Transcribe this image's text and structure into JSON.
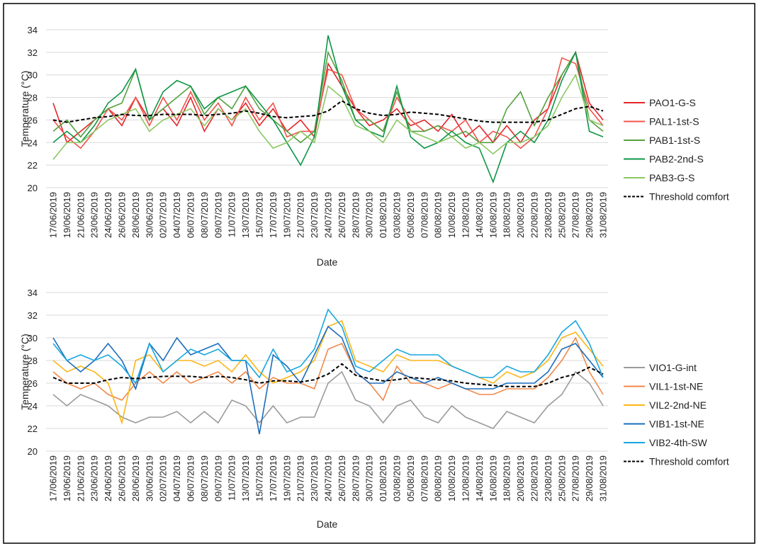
{
  "chart_data": [
    {
      "type": "line",
      "x_label": "Date",
      "y_label": "Temperature (°C)",
      "categories": [
        "17/06/2019",
        "19/06/2019",
        "21/06/2019",
        "23/06/2019",
        "24/06/2019",
        "26/06/2019",
        "28/06/2019",
        "30/06/2019",
        "02/07/2019",
        "04/07/2019",
        "06/07/2019",
        "08/07/2019",
        "09/07/2019",
        "11/07/2019",
        "13/07/2019",
        "15/07/2019",
        "17/07/2019",
        "19/07/2019",
        "21/07/2019",
        "23/07/2019",
        "24/07/2019",
        "26/07/2019",
        "28/07/2019",
        "30/07/2019",
        "01/08/2019",
        "03/08/2019",
        "05/08/2019",
        "07/08/2019",
        "08/08/2019",
        "10/08/2019",
        "12/08/2019",
        "14/08/2019",
        "16/08/2019",
        "18/08/2019",
        "20/08/2019",
        "22/08/2019",
        "23/08/2019",
        "25/08/2019",
        "27/08/2019",
        "29/08/2019",
        "31/08/2019"
      ],
      "ylim": [
        20,
        34
      ],
      "yticks": [
        20,
        22,
        24,
        26,
        28,
        30,
        32,
        34
      ],
      "grid": true,
      "series": [
        {
          "name": "PAO1-G-S",
          "color": "#e3262b",
          "values": [
            27.5,
            24,
            25,
            26,
            27,
            25.5,
            28,
            26,
            27,
            25.5,
            28,
            25,
            27,
            26,
            27.5,
            25.5,
            27,
            25,
            26,
            24.5,
            31,
            29,
            27,
            25.5,
            26,
            27,
            25.5,
            26,
            25,
            26.5,
            24.5,
            25.5,
            24,
            25.5,
            24,
            26,
            27,
            30,
            32,
            27.5,
            26
          ]
        },
        {
          "name": "PAL1-1st-S",
          "color": "#f2534d",
          "values": [
            26,
            24.5,
            23.5,
            25,
            27,
            26,
            28,
            25.5,
            28,
            26,
            28.5,
            26,
            27.5,
            25.5,
            28,
            26,
            27.5,
            24.5,
            25,
            25,
            30.5,
            30,
            27,
            26,
            25,
            28,
            26,
            25,
            25.5,
            25,
            26,
            24,
            25,
            24.5,
            23.5,
            24.5,
            27,
            31.5,
            31,
            27,
            25.5
          ]
        },
        {
          "name": "PAB1-1st-S",
          "color": "#55a13f",
          "values": [
            25,
            26,
            24.5,
            26,
            27,
            27.5,
            30.5,
            26,
            27,
            28,
            29,
            26.5,
            28,
            27,
            29,
            27,
            26,
            25,
            24,
            25,
            32,
            29.5,
            26,
            26,
            25,
            28.5,
            25,
            25,
            25.5,
            24.5,
            25,
            24,
            24,
            27,
            28.5,
            25.5,
            28,
            30,
            32,
            26,
            25
          ]
        },
        {
          "name": "PAB2-2nd-S",
          "color": "#0f9647",
          "values": [
            24,
            25,
            24,
            25.5,
            27.5,
            28.5,
            30.5,
            26,
            28.5,
            29.5,
            29,
            27,
            28,
            28.5,
            29,
            27.5,
            26,
            24,
            22,
            24.5,
            33.5,
            29,
            26,
            25,
            24.5,
            29,
            24.5,
            23.5,
            24,
            25,
            24,
            23.5,
            20.5,
            24,
            25,
            24,
            26,
            29.5,
            32,
            25,
            24.5
          ]
        },
        {
          "name": "PAB3-G-S",
          "color": "#8cc863",
          "values": [
            22.5,
            24,
            24,
            25,
            26,
            26.5,
            27,
            25,
            26,
            26.5,
            27,
            25.5,
            27,
            26,
            27,
            25,
            23.5,
            24,
            25,
            24,
            29,
            28,
            25.5,
            25,
            24,
            26,
            25,
            24.5,
            24,
            24.5,
            23.5,
            24,
            23,
            24,
            24,
            24.5,
            25.5,
            28,
            30,
            26,
            25.5
          ]
        },
        {
          "name": "Threshold comfort",
          "color": "#000000",
          "dashed": true,
          "values": [
            26.0,
            25.8,
            26.0,
            26.2,
            26.3,
            26.5,
            26.4,
            26.4,
            26.5,
            26.5,
            26.5,
            26.4,
            26.5,
            26.6,
            26.8,
            26.6,
            26.3,
            26.2,
            26.3,
            26.4,
            26.8,
            27.7,
            27.0,
            26.6,
            26.4,
            26.5,
            26.7,
            26.6,
            26.5,
            26.3,
            26.1,
            25.9,
            25.8,
            25.8,
            25.8,
            25.8,
            26.0,
            26.5,
            27.0,
            27.2,
            26.8
          ]
        }
      ]
    },
    {
      "type": "line",
      "x_label": "Date",
      "y_label": "Temperature (°C)",
      "categories": [
        "17/06/2019",
        "19/06/2019",
        "21/06/2019",
        "23/06/2019",
        "24/06/2019",
        "26/06/2019",
        "28/06/2019",
        "30/06/2019",
        "02/07/2019",
        "04/07/2019",
        "06/07/2019",
        "08/07/2019",
        "09/07/2019",
        "11/07/2019",
        "13/07/2019",
        "15/07/2019",
        "17/07/2019",
        "19/07/2019",
        "21/07/2019",
        "23/07/2019",
        "24/07/2019",
        "26/07/2019",
        "28/07/2019",
        "30/07/2019",
        "01/08/2019",
        "03/08/2019",
        "05/08/2019",
        "07/08/2019",
        "08/08/2019",
        "10/08/2019",
        "12/08/2019",
        "14/08/2019",
        "16/08/2019",
        "18/08/2019",
        "20/08/2019",
        "22/08/2019",
        "23/08/2019",
        "25/08/2019",
        "27/08/2019",
        "29/08/2019",
        "31/08/2019"
      ],
      "ylim": [
        20,
        34
      ],
      "yticks": [
        20,
        22,
        24,
        26,
        28,
        30,
        32,
        34
      ],
      "grid": true,
      "series": [
        {
          "name": "VIO1-G-int",
          "color": "#9a9a9a",
          "values": [
            25,
            24,
            25,
            24.5,
            24,
            23,
            22.5,
            23,
            23,
            23.5,
            22.5,
            23.5,
            22.5,
            24.5,
            24,
            22.5,
            24,
            22.5,
            23,
            23,
            26,
            27,
            24.5,
            24,
            22.5,
            24,
            24.5,
            23,
            22.5,
            24,
            23,
            22.5,
            22,
            23.5,
            23,
            22.5,
            24,
            25,
            27,
            26,
            24
          ]
        },
        {
          "name": "VIL1-1st-NE",
          "color": "#f0894a",
          "values": [
            27,
            26,
            25.5,
            26,
            25,
            24.5,
            26,
            27,
            26,
            27,
            26,
            26.5,
            27,
            26,
            27,
            25.5,
            26.5,
            26,
            26,
            25.5,
            29,
            29.5,
            27,
            26,
            24.5,
            27.5,
            26,
            26,
            25.5,
            26,
            25.5,
            25,
            25,
            25.5,
            25.5,
            25.5,
            26.5,
            28,
            30,
            27,
            25
          ]
        },
        {
          "name": "VIL2-2nd-NE",
          "color": "#fbb61a",
          "values": [
            28,
            27,
            27.5,
            27,
            26,
            22.5,
            28,
            28.5,
            27,
            28,
            28,
            27.5,
            28,
            27,
            28.5,
            27,
            26,
            26.5,
            27,
            28,
            31,
            31.5,
            28,
            27.5,
            27,
            28.5,
            28,
            28,
            28,
            27.5,
            27,
            26.5,
            26,
            27,
            26.5,
            27,
            28,
            30,
            30.5,
            29,
            27.5
          ]
        },
        {
          "name": "VIB1-1st-NE",
          "color": "#1b6dbd",
          "values": [
            30,
            28,
            27,
            28,
            29.5,
            28,
            25.5,
            29.5,
            28,
            30,
            28.5,
            29,
            29.5,
            28,
            28,
            21.5,
            28.5,
            27.5,
            26,
            28.5,
            31,
            30,
            27,
            26,
            26,
            27,
            26.5,
            26,
            26.5,
            26,
            25.5,
            25.5,
            25.5,
            26,
            26,
            26,
            27,
            29,
            29.5,
            28,
            26.5
          ]
        },
        {
          "name": "VIB2-4th-SW",
          "color": "#17a6e0",
          "values": [
            29.5,
            28,
            28.5,
            28,
            28.5,
            27.5,
            26,
            29.5,
            27,
            28,
            29,
            28.5,
            29,
            28,
            28,
            26.5,
            29,
            27,
            27.5,
            29,
            32.5,
            31,
            27.5,
            27,
            28,
            29,
            28.5,
            28.5,
            28.5,
            27.5,
            27,
            26.5,
            26.5,
            27.5,
            27,
            27,
            28.5,
            30.5,
            31.5,
            29.5,
            26.5
          ]
        },
        {
          "name": "Threshold comfort",
          "color": "#000000",
          "dashed": true,
          "values": [
            26.5,
            26.0,
            26.0,
            26.0,
            26.3,
            26.5,
            26.4,
            26.5,
            26.6,
            26.6,
            26.6,
            26.5,
            26.6,
            26.5,
            26.3,
            26.0,
            26.2,
            26.2,
            26.1,
            26.3,
            26.8,
            27.7,
            26.7,
            26.4,
            26.2,
            26.3,
            26.5,
            26.4,
            26.3,
            26.2,
            26.0,
            25.9,
            25.8,
            25.7,
            25.7,
            25.7,
            26.0,
            26.5,
            26.8,
            27.4,
            26.8
          ]
        }
      ]
    }
  ]
}
